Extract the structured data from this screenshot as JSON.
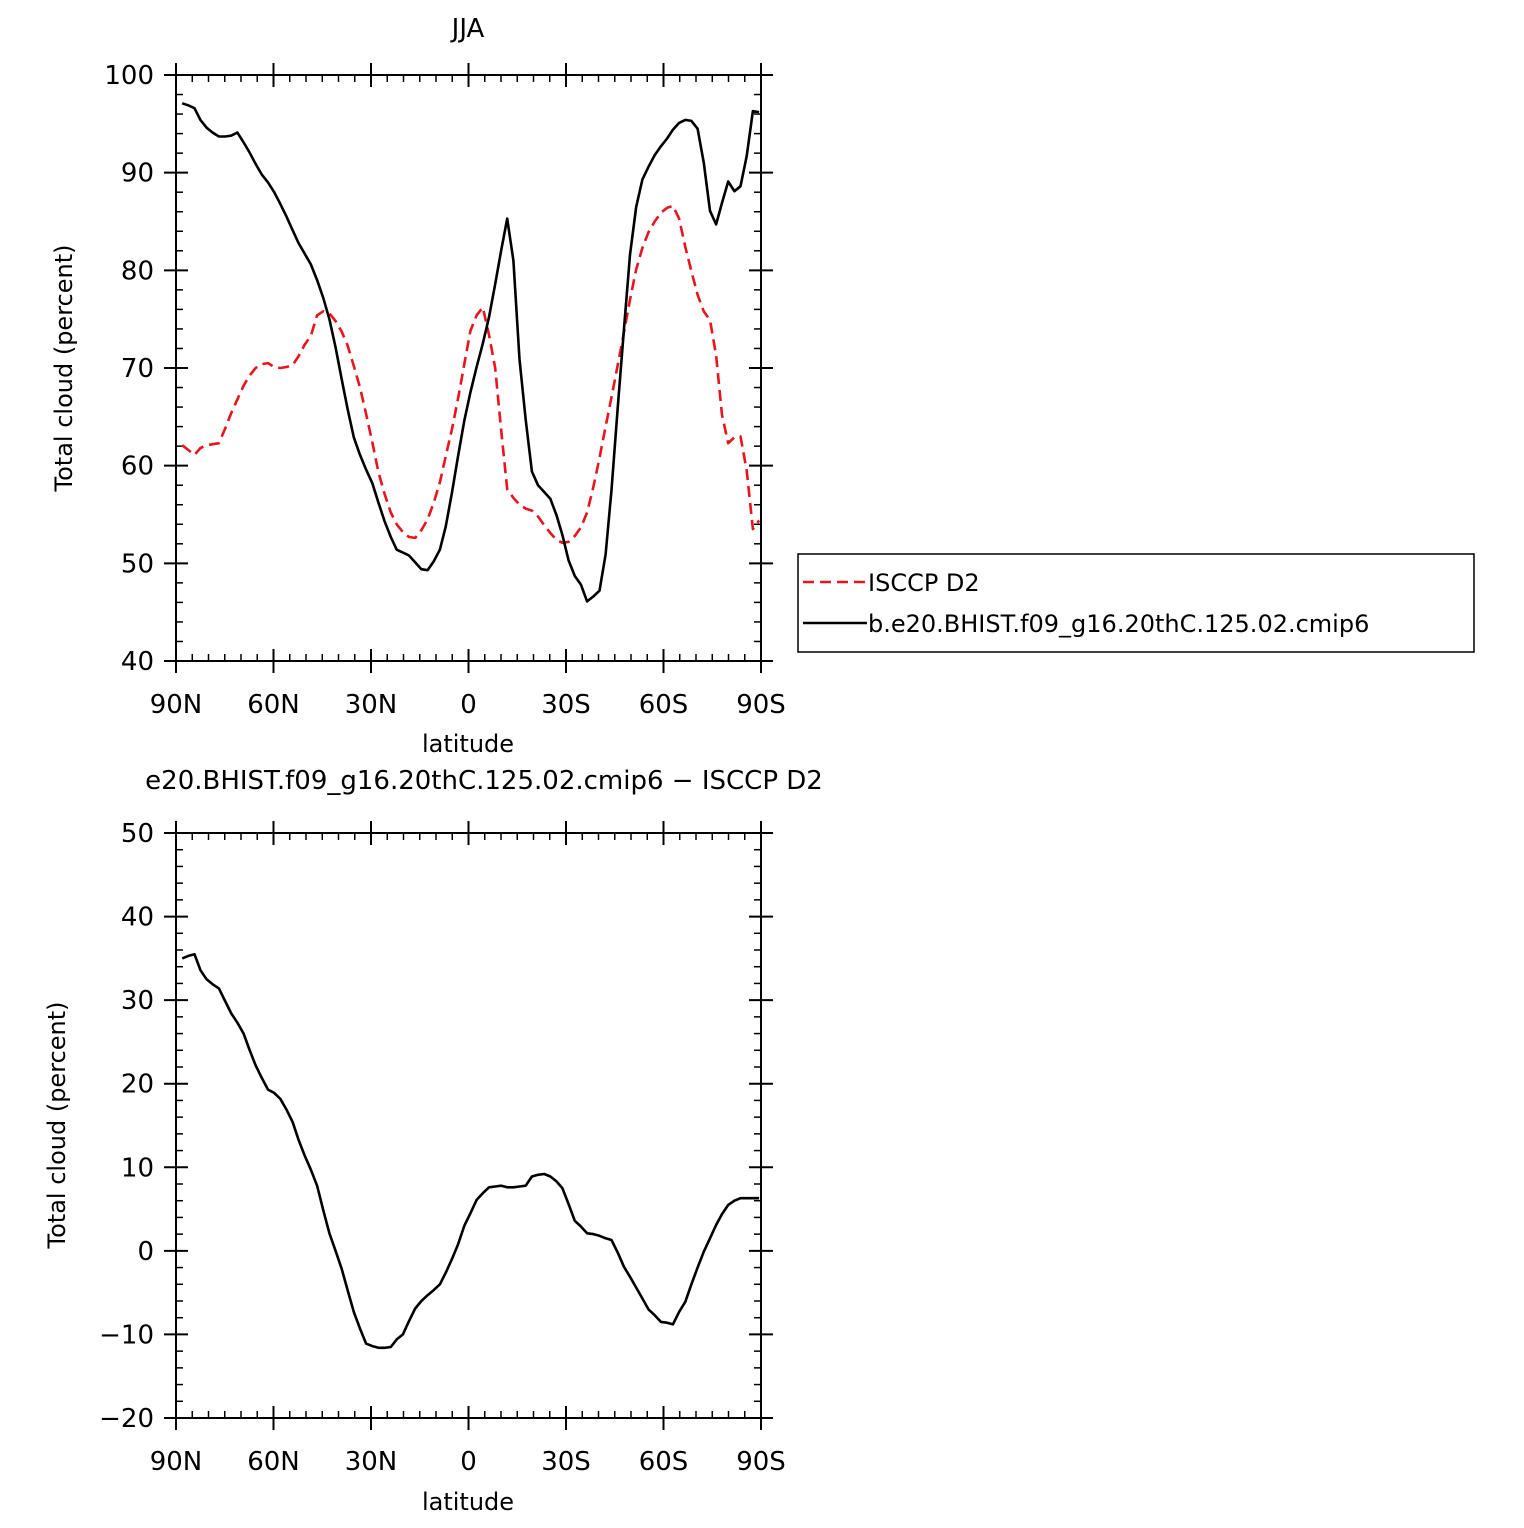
{
  "chart_data": [
    {
      "type": "line",
      "title": "JJA",
      "xlabel": "latitude",
      "ylabel": "Total cloud (percent)",
      "xlim": [
        90,
        -90
      ],
      "ylim": [
        40,
        100
      ],
      "xticks": [
        90,
        60,
        30,
        0,
        -30,
        -60,
        -90
      ],
      "xtick_labels": [
        "90N",
        "60N",
        "30N",
        "0",
        "30S",
        "60S",
        "90S"
      ],
      "yticks": [
        40,
        50,
        60,
        70,
        80,
        90,
        100
      ],
      "ytick_labels": [
        "40",
        "50",
        "60",
        "70",
        "80",
        "90",
        "100"
      ],
      "legend_position": "right",
      "series": [
        {
          "name": "ISCCP D2",
          "color": "#e8141e",
          "style": "dashed",
          "x": [
            88.1,
            86.2,
            84.3,
            82.5,
            80.6,
            78.7,
            76.8,
            74.9,
            73.0,
            71.1,
            69.2,
            67.4,
            65.5,
            63.6,
            61.7,
            59.8,
            57.9,
            56.0,
            54.1,
            52.3,
            50.4,
            48.5,
            46.6,
            44.7,
            42.8,
            40.9,
            39.0,
            37.2,
            35.3,
            33.4,
            31.5,
            29.6,
            27.7,
            25.8,
            23.9,
            22.1,
            20.2,
            18.3,
            16.4,
            14.5,
            12.6,
            10.7,
            8.8,
            7.0,
            5.1,
            3.2,
            1.3,
            -0.6,
            -2.5,
            -4.4,
            -6.3,
            -8.2,
            -10.1,
            -11.9,
            -13.8,
            -15.7,
            -17.6,
            -19.5,
            -21.4,
            -23.3,
            -25.2,
            -27.1,
            -28.9,
            -30.8,
            -32.7,
            -34.6,
            -36.5,
            -38.4,
            -40.3,
            -42.2,
            -44.0,
            -45.9,
            -47.8,
            -49.7,
            -51.6,
            -53.5,
            -55.4,
            -57.3,
            -59.2,
            -61.1,
            -62.9,
            -64.8,
            -66.7,
            -68.6,
            -70.5,
            -72.4,
            -74.3,
            -76.2,
            -78.0,
            -79.9,
            -81.8,
            -83.7,
            -85.6,
            -87.5,
            -89.4
          ],
          "values": [
            62.1,
            61.6,
            61.1,
            61.8,
            62.1,
            62.2,
            62.3,
            63.8,
            65.4,
            66.8,
            68.2,
            69.2,
            70.0,
            70.4,
            70.5,
            70.1,
            70.0,
            70.1,
            70.3,
            71.2,
            72.4,
            73.3,
            75.4,
            75.8,
            75.6,
            74.8,
            73.7,
            72.3,
            70.2,
            68.0,
            65.3,
            62.4,
            59.3,
            57.1,
            55.2,
            54.0,
            53.2,
            52.7,
            52.6,
            53.4,
            54.5,
            56.2,
            58.3,
            61.0,
            63.7,
            66.9,
            70.4,
            73.8,
            75.4,
            76.2,
            73.4,
            70.0,
            63.5,
            57.6,
            56.7,
            56.0,
            55.6,
            55.4,
            54.8,
            53.9,
            53.1,
            52.4,
            52.1,
            52.2,
            52.8,
            53.7,
            55.2,
            57.8,
            60.8,
            64.0,
            67.0,
            70.3,
            73.6,
            77.0,
            80.1,
            82.3,
            83.9,
            85.0,
            85.9,
            86.4,
            86.6,
            85.3,
            82.4,
            79.9,
            77.5,
            75.8,
            74.9,
            71.3,
            65.2,
            62.3,
            62.9,
            63.0,
            59.5,
            53.5,
            54.4
          ],
          "note": "values at exact tick positions approximated from the plotted curve"
        },
        {
          "name": "b.e20.BHIST.f09_g16.20thC.125.02.cmip6",
          "color": "#000000",
          "style": "solid",
          "x": [
            88.1,
            86.2,
            84.3,
            82.5,
            80.6,
            78.7,
            76.8,
            74.9,
            73.0,
            71.1,
            69.2,
            67.4,
            65.5,
            63.6,
            61.7,
            59.8,
            57.9,
            56.0,
            54.1,
            52.3,
            50.4,
            48.5,
            46.6,
            44.7,
            42.8,
            40.9,
            39.0,
            37.2,
            35.3,
            33.4,
            31.5,
            29.6,
            27.7,
            25.8,
            23.9,
            22.1,
            20.2,
            18.3,
            16.4,
            14.5,
            12.6,
            10.7,
            8.8,
            7.0,
            5.1,
            3.2,
            1.3,
            -0.6,
            -2.5,
            -4.4,
            -6.3,
            -8.2,
            -10.1,
            -11.9,
            -13.8,
            -15.7,
            -17.6,
            -19.5,
            -21.4,
            -23.3,
            -25.2,
            -27.1,
            -28.9,
            -30.8,
            -32.7,
            -34.6,
            -36.5,
            -38.4,
            -40.3,
            -42.2,
            -44.0,
            -45.9,
            -47.8,
            -49.7,
            -51.6,
            -53.5,
            -55.4,
            -57.3,
            -59.2,
            -61.1,
            -62.9,
            -64.8,
            -66.7,
            -68.6,
            -70.5,
            -72.4,
            -74.3,
            -76.2,
            -78.0,
            -79.9,
            -81.8,
            -83.7,
            -85.6,
            -87.5,
            -89.4
          ],
          "values": [
            97.1,
            96.9,
            96.6,
            95.4,
            94.6,
            94.1,
            93.7,
            93.7,
            93.8,
            94.1,
            93.1,
            92.1,
            90.9,
            89.8,
            89.0,
            88.0,
            86.8,
            85.5,
            84.1,
            82.8,
            81.7,
            80.6,
            79.0,
            77.2,
            75.0,
            72.1,
            68.8,
            65.8,
            62.9,
            61.1,
            59.6,
            58.2,
            56.2,
            54.3,
            52.7,
            51.4,
            51.1,
            50.8,
            50.1,
            49.4,
            49.3,
            50.2,
            51.4,
            53.8,
            57.2,
            61.0,
            64.6,
            67.5,
            70.1,
            72.5,
            75.2,
            78.6,
            82.1,
            85.3,
            81.0,
            70.9,
            64.7,
            59.4,
            58.0,
            57.3,
            56.6,
            54.9,
            52.9,
            50.3,
            48.7,
            47.8,
            46.1,
            46.6,
            47.2,
            50.9,
            57.5,
            65.9,
            73.9,
            81.6,
            86.5,
            89.3,
            90.6,
            91.8,
            92.7,
            93.5,
            94.4,
            95.1,
            95.4,
            95.3,
            94.5,
            91.0,
            86.1,
            84.7,
            86.9,
            89.1,
            88.1,
            88.6,
            91.7,
            96.3,
            96.2
          ],
          "note": "values at exact tick positions approximated from the plotted curve"
        }
      ]
    },
    {
      "type": "line",
      "title": "e20.BHIST.f09_g16.20thC.125.02.cmip6 − ISCCP D2",
      "xlabel": "latitude",
      "ylabel": "Total cloud (percent)",
      "xlim": [
        90,
        -90
      ],
      "ylim": [
        -20,
        50
      ],
      "xticks": [
        90,
        60,
        30,
        0,
        -30,
        -60,
        -90
      ],
      "xtick_labels": [
        "90N",
        "60N",
        "30N",
        "0",
        "30S",
        "60S",
        "90S"
      ],
      "yticks": [
        -20,
        -10,
        0,
        10,
        20,
        30,
        40,
        50
      ],
      "ytick_labels": [
        "−20",
        "−10",
        "0",
        "10",
        "20",
        "30",
        "40",
        "50"
      ],
      "series": [
        {
          "color": "#000000",
          "style": "solid",
          "x": [
            88.1,
            86.2,
            84.3,
            82.5,
            80.6,
            78.7,
            76.8,
            74.9,
            73.0,
            71.1,
            69.2,
            67.4,
            65.5,
            63.6,
            61.7,
            59.8,
            57.9,
            56.0,
            54.1,
            52.3,
            50.4,
            48.5,
            46.6,
            44.7,
            42.8,
            40.9,
            39.0,
            37.2,
            35.3,
            33.4,
            31.5,
            29.6,
            27.7,
            25.8,
            23.9,
            22.1,
            20.2,
            18.3,
            16.4,
            14.5,
            12.6,
            10.7,
            8.8,
            7.0,
            5.1,
            3.2,
            1.3,
            -0.6,
            -2.5,
            -4.4,
            -6.3,
            -8.2,
            -10.1,
            -11.9,
            -13.8,
            -15.7,
            -17.6,
            -19.5,
            -21.4,
            -23.3,
            -25.2,
            -27.1,
            -28.9,
            -30.8,
            -32.7,
            -34.6,
            -36.5,
            -38.4,
            -40.3,
            -42.2,
            -44.0,
            -45.9,
            -47.8,
            -49.7,
            -51.6,
            -53.5,
            -55.4,
            -57.3,
            -59.2,
            -61.1,
            -62.9,
            -64.8,
            -66.7,
            -68.6,
            -70.5,
            -72.4,
            -74.3,
            -76.2,
            -78.0,
            -79.9,
            -81.8,
            -83.7,
            -85.6,
            -87.5,
            -89.4
          ],
          "values": [
            35.0,
            35.3,
            35.5,
            33.6,
            32.5,
            31.9,
            31.4,
            29.9,
            28.4,
            27.3,
            26.0,
            24.1,
            22.2,
            20.7,
            19.3,
            18.9,
            18.2,
            16.9,
            15.4,
            13.3,
            11.4,
            9.7,
            7.8,
            4.9,
            2.1,
            0.0,
            -2.2,
            -4.7,
            -7.3,
            -9.3,
            -11.1,
            -11.4,
            -11.6,
            -11.6,
            -11.5,
            -10.6,
            -10.0,
            -8.4,
            -6.9,
            -6.0,
            -5.3,
            -4.7,
            -4.0,
            -2.6,
            -1.0,
            0.8,
            3.0,
            4.5,
            6.1,
            6.9,
            7.6,
            7.7,
            7.8,
            7.6,
            7.6,
            7.7,
            7.8,
            8.9,
            9.1,
            9.2,
            8.9,
            8.3,
            7.5,
            5.6,
            3.6,
            2.9,
            2.1,
            2.0,
            1.8,
            1.5,
            1.3,
            -0.2,
            -1.9,
            -3.1,
            -4.4,
            -5.7,
            -7.0,
            -7.7,
            -8.5,
            -8.6,
            -8.8,
            -7.3,
            -6.1,
            -4.0,
            -2.0,
            -0.1,
            1.5,
            3.1,
            4.4,
            5.5,
            6.0,
            6.3,
            6.3,
            6.3,
            6.3
          ],
          "note": "values at exact tick positions approximated from the plotted curve"
        }
      ]
    }
  ],
  "legend": {
    "items": [
      {
        "label": "ISCCP D2"
      },
      {
        "label": "b.e20.BHIST.f09_g16.20thC.125.02.cmip6"
      }
    ]
  }
}
